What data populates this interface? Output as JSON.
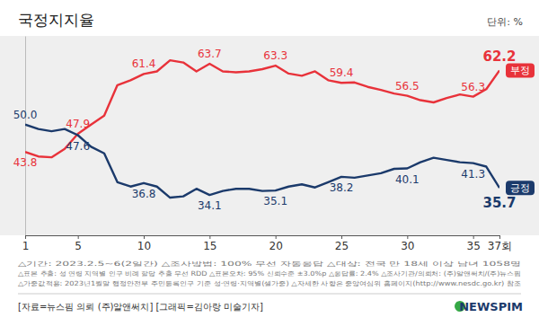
{
  "chart_data": {
    "type": "line",
    "title": "국정지지율",
    "unit": "단위: %",
    "x": [
      1,
      2,
      3,
      4,
      5,
      6,
      7,
      8,
      9,
      10,
      11,
      12,
      13,
      14,
      15,
      16,
      17,
      18,
      19,
      20,
      21,
      22,
      23,
      24,
      25,
      26,
      27,
      28,
      29,
      30,
      31,
      32,
      33,
      34,
      35,
      36,
      37
    ],
    "xlim": [
      1,
      37
    ],
    "xticks": [
      1,
      5,
      10,
      15,
      20,
      25,
      30,
      35,
      {
        "value": 37,
        "label": "37회"
      }
    ],
    "ylim": [
      25,
      70
    ],
    "yticks": [],
    "tick_labels": "x",
    "grid": false,
    "data_labels": true,
    "series": [
      {
        "name": "부정",
        "color": "#e8323a",
        "values": [
          43.8,
          42.8,
          42.6,
          44.5,
          47.9,
          50.0,
          52.0,
          58.9,
          60.0,
          61.4,
          62.0,
          64.5,
          64.0,
          62.0,
          63.7,
          62.0,
          61.8,
          62.0,
          62.5,
          63.3,
          61.5,
          61.0,
          62.0,
          60.0,
          59.4,
          59.5,
          58.5,
          57.8,
          57.0,
          56.5,
          55.5,
          55.0,
          56.0,
          56.8,
          56.3,
          58.0,
          62.2
        ],
        "value_labels": [
          "43.8",
          null,
          null,
          null,
          "47.9",
          null,
          null,
          null,
          null,
          "61.4",
          null,
          null,
          null,
          null,
          "63.7",
          null,
          null,
          null,
          null,
          "63.3",
          null,
          null,
          null,
          null,
          "59.4",
          null,
          null,
          null,
          null,
          "56.5",
          null,
          null,
          null,
          null,
          "56.3",
          null,
          "62.2"
        ]
      },
      {
        "name": "긍정",
        "color": "#1b3a6b",
        "values": [
          50.0,
          49.0,
          48.5,
          49.0,
          47.6,
          45.0,
          43.5,
          37.0,
          36.0,
          36.8,
          36.0,
          33.5,
          33.8,
          35.5,
          34.1,
          35.0,
          35.5,
          35.5,
          35.0,
          35.1,
          36.0,
          36.5,
          35.8,
          37.0,
          38.2,
          38.0,
          38.5,
          39.0,
          40.0,
          40.1,
          41.5,
          42.5,
          42.0,
          41.5,
          41.3,
          40.5,
          35.7
        ],
        "value_labels": [
          "50.0",
          null,
          null,
          null,
          "47.6",
          null,
          null,
          null,
          null,
          "36.8",
          null,
          null,
          null,
          null,
          "34.1",
          null,
          null,
          null,
          null,
          "35.1",
          null,
          null,
          null,
          null,
          "38.2",
          null,
          null,
          null,
          null,
          "40.1",
          null,
          null,
          null,
          null,
          "41.3",
          null,
          "35.7"
        ]
      }
    ],
    "notes": [
      "△기간: 2023.2.5~6(2일간)  △조사방법: 100% 무선 자동응답  △대상: 전국 만 18세 이상 남녀 1058명",
      "△표본 추출: 성 연령 지역별 인구 비례 할당 추출 무선 RDD  △표본오차: 95% 신뢰수준 ±3.0%p  △응답률: 2.4%  △조사기관/의뢰처: (주)알앤써치/(주)뉴스핌",
      "△가중값적용: 2023년1월말 행정안전부 주민등록인구 기준 성·연령·지역별(셀가중)  △자세한 사항은 중앙여심위 홈페이지(http://www.nesdc.go.kr) 참조"
    ],
    "source": "[자료=뉴스핌 의뢰 (주)알앤써치] [그래픽=김아랑 미술기자]",
    "logo": "NEWSPIM"
  }
}
